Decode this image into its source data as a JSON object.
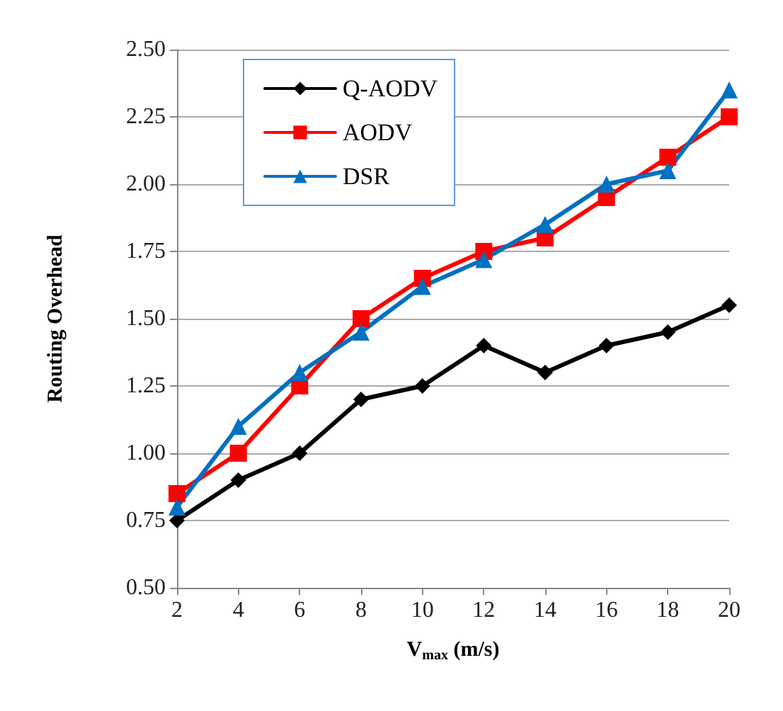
{
  "chart_data": {
    "type": "line",
    "xlabel": "V$_{max}$ (m/s)",
    "ylabel": "Routing Overhead",
    "categories": [
      "2",
      "4",
      "6",
      "8",
      "10",
      "12",
      "14",
      "16",
      "18",
      "20"
    ],
    "series": [
      {
        "name": "Q-AODV",
        "color": "#000000",
        "marker": "diamond",
        "values": [
          0.75,
          0.9,
          1.0,
          1.2,
          1.25,
          1.4,
          1.3,
          1.4,
          1.45,
          1.55
        ]
      },
      {
        "name": "AODV",
        "color": "#ff0000",
        "marker": "square",
        "values": [
          0.85,
          1.0,
          1.25,
          1.5,
          1.65,
          1.75,
          1.8,
          1.95,
          2.1,
          2.25
        ]
      },
      {
        "name": "DSR",
        "color": "#0070c0",
        "marker": "triangle",
        "values": [
          0.8,
          1.1,
          1.3,
          1.45,
          1.62,
          1.72,
          1.85,
          2.0,
          2.05,
          2.35
        ]
      }
    ],
    "ylim": [
      0.5,
      2.5
    ],
    "yticks": [
      {
        "value": 0.5,
        "label": "0.50"
      },
      {
        "value": 0.75,
        "label": "0.75"
      },
      {
        "value": 1.0,
        "label": "1.00"
      },
      {
        "value": 1.25,
        "label": "1.25"
      },
      {
        "value": 1.5,
        "label": "1.50"
      },
      {
        "value": 1.75,
        "label": "1.75"
      },
      {
        "value": 2.0,
        "label": "2.00"
      },
      {
        "value": 2.25,
        "label": "2.25"
      },
      {
        "value": 2.5,
        "label": "2.50"
      }
    ],
    "grid": "y",
    "legend": "top left",
    "line_style": "solid"
  }
}
